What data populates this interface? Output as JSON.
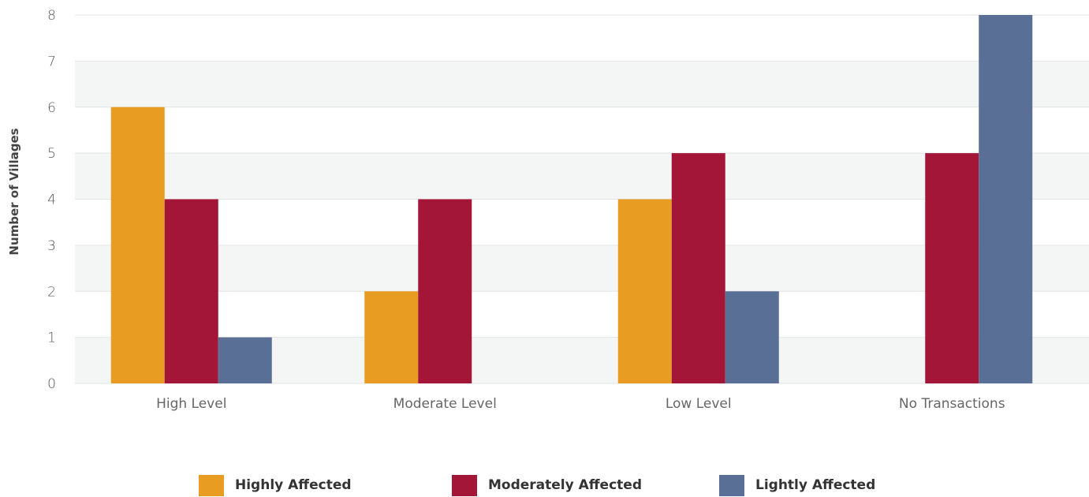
{
  "chart_data": {
    "type": "bar",
    "title": "",
    "xlabel": "",
    "ylabel": "Number of Villages",
    "ylim": [
      0,
      8
    ],
    "yticks": [
      0,
      1,
      2,
      3,
      4,
      5,
      6,
      7,
      8
    ],
    "categories": [
      "High Level",
      "Moderate Level",
      "Low Level",
      "No Transactions"
    ],
    "series": [
      {
        "name": "Highly Affected",
        "color": "#E99C22",
        "values": [
          6,
          2,
          4,
          0
        ]
      },
      {
        "name": "Moderately Affected",
        "color": "#A41638",
        "values": [
          4,
          4,
          5,
          5
        ]
      },
      {
        "name": "Lightly Affected",
        "color": "#5A6F96",
        "values": [
          1,
          0,
          2,
          8
        ]
      }
    ],
    "grid": true,
    "legend_position": "bottom"
  }
}
